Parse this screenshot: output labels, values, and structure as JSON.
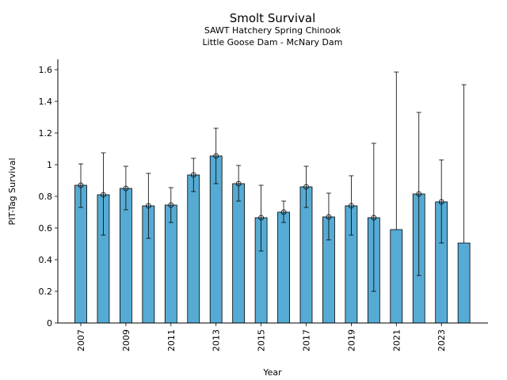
{
  "chart_data": {
    "type": "bar",
    "title": "Smolt Survival",
    "subtitle_lines": [
      "SAWT Hatchery Spring Chinook",
      "Little Goose Dam - McNary Dam"
    ],
    "xlabel": "Year",
    "ylabel": "PIT-Tag Survival",
    "ylim": [
      0,
      1.66
    ],
    "yticks": [
      0,
      0.2,
      0.4,
      0.6,
      0.8,
      1,
      1.2,
      1.4,
      1.6
    ],
    "ytick_labels": [
      "0",
      "0.2",
      "0.4",
      "0.6",
      "0.8",
      "1",
      "1.2",
      "1.4",
      "1.6"
    ],
    "xtick_labels": [
      "2007",
      "2009",
      "2011",
      "2013",
      "2015",
      "2017",
      "2019",
      "2021",
      "2023"
    ],
    "categories": [
      2007,
      2008,
      2009,
      2010,
      2011,
      2012,
      2013,
      2014,
      2015,
      2016,
      2017,
      2018,
      2019,
      2020,
      2021,
      2022,
      2023,
      2024
    ],
    "values": [
      0.87,
      0.81,
      0.85,
      0.74,
      0.745,
      0.935,
      1.055,
      0.88,
      0.665,
      0.7,
      0.86,
      0.67,
      0.74,
      0.665,
      0.59,
      0.815,
      0.765,
      0.505
    ],
    "lower": [
      0.73,
      0.555,
      0.715,
      0.535,
      0.635,
      0.83,
      0.88,
      0.77,
      0.455,
      0.635,
      0.73,
      0.525,
      0.555,
      0.2,
      null,
      0.3,
      0.505,
      null
    ],
    "upper": [
      1.005,
      1.075,
      0.99,
      0.945,
      0.855,
      1.04,
      1.23,
      0.995,
      0.87,
      0.77,
      0.99,
      0.82,
      0.93,
      1.135,
      1.585,
      1.33,
      1.03,
      1.505
    ],
    "markers": [
      true,
      true,
      true,
      true,
      true,
      true,
      true,
      true,
      true,
      true,
      true,
      true,
      true,
      true,
      false,
      true,
      true,
      false
    ],
    "bar_color": "#56abd4",
    "bar_edge_color": "#000000",
    "grid": false
  }
}
